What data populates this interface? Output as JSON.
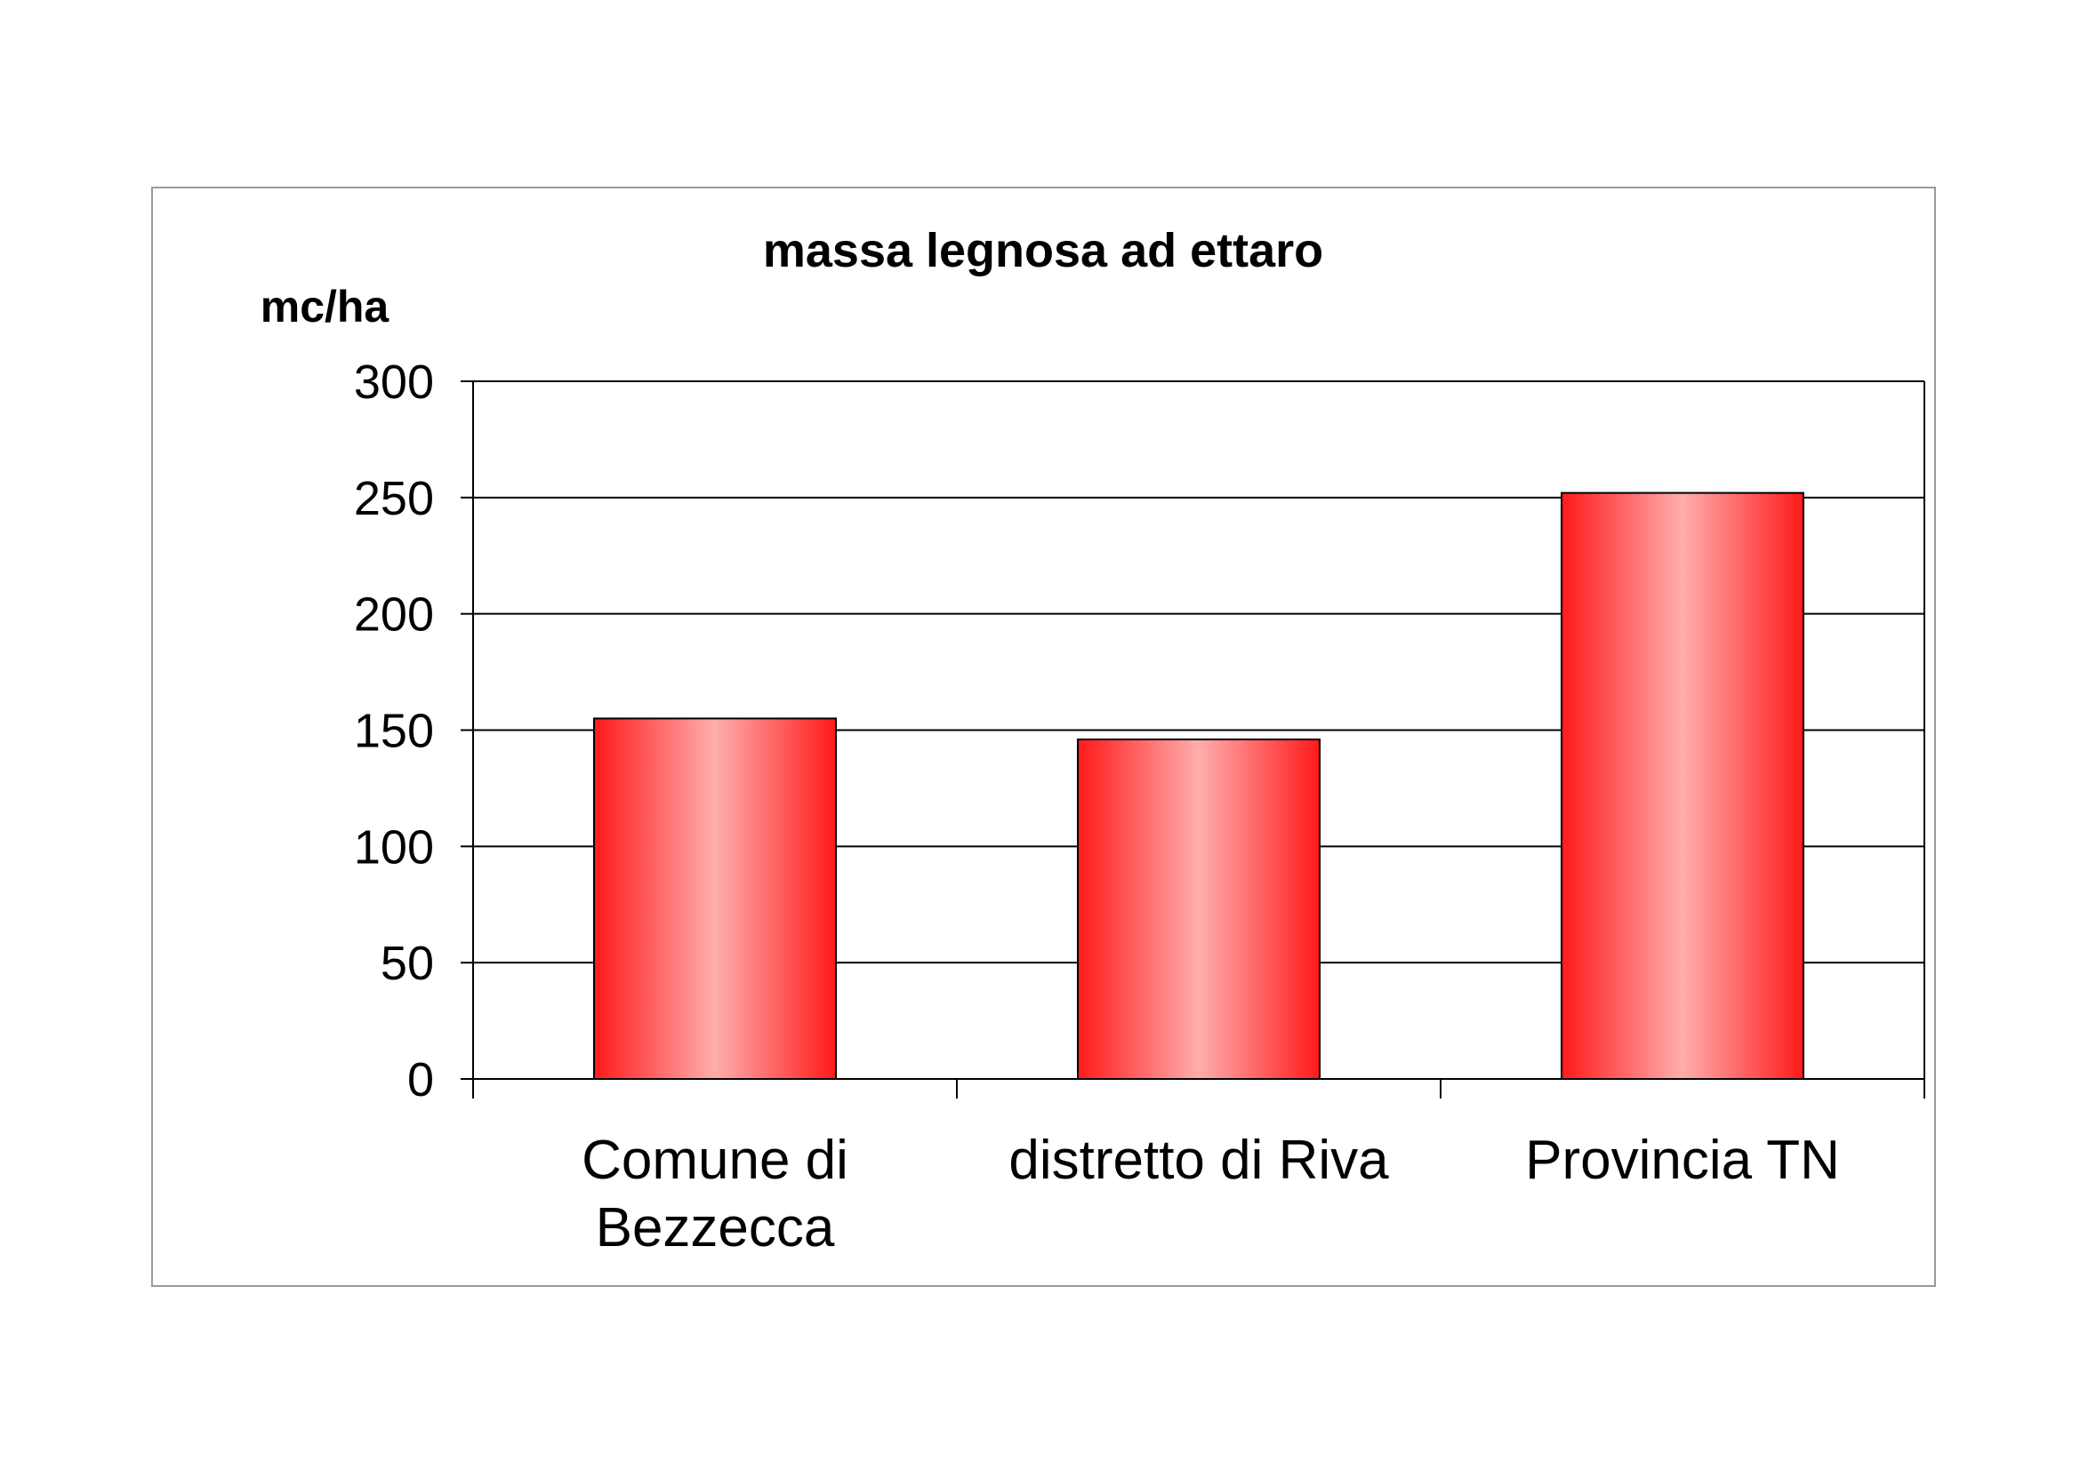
{
  "chart_data": {
    "type": "bar",
    "title": "massa legnosa ad ettaro",
    "xlabel": "",
    "ylabel": "mc/ha",
    "categories": [
      [
        "Comune di",
        "Bezzecca"
      ],
      [
        "distretto di Riva"
      ],
      [
        "Provincia TN"
      ]
    ],
    "values": [
      155,
      146,
      252
    ],
    "ylim": [
      0,
      300
    ],
    "yticks": [
      0,
      50,
      100,
      150,
      200,
      250,
      300
    ],
    "grid": true,
    "legend": "none",
    "bar_color_edge": "#ff1a1a",
    "bar_color_center": "#ffadad",
    "bar_outline": "#000000"
  }
}
